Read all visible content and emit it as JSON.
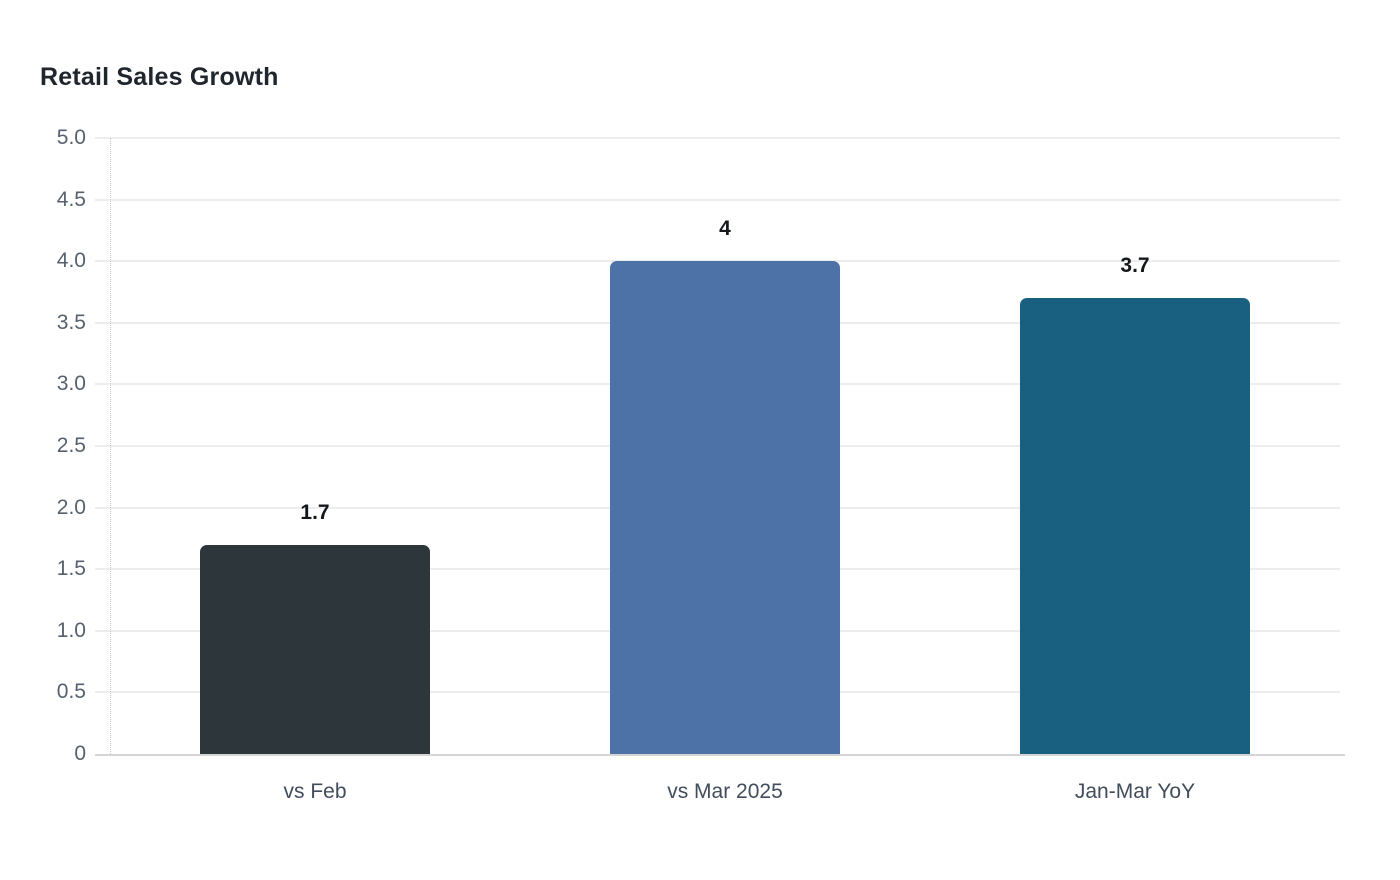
{
  "page": {
    "background": "#ffffff"
  },
  "chart_data": {
    "type": "bar",
    "title": "Retail Sales Growth",
    "categories": [
      "vs Feb",
      "vs Mar 2025",
      "Jan-Mar YoY"
    ],
    "values": [
      1.7,
      4,
      3.7
    ],
    "value_labels": [
      "1.7",
      "4",
      "3.7"
    ],
    "bar_colors": [
      "#2d363b",
      "#4c72a7",
      "#185f80"
    ],
    "xlabel": "",
    "ylabel": "",
    "ylim": [
      0,
      5
    ],
    "ytick_step": 0.5,
    "ytick_labels": [
      "0",
      "0.5",
      "1.0",
      "1.5",
      "2.0",
      "2.5",
      "3.0",
      "3.5",
      "4.0",
      "4.5",
      "5.0"
    ],
    "grid": true,
    "legend": false,
    "colors": {
      "title": "#20262e",
      "grid": "#ededed",
      "axis_line": "#d5d5d5",
      "dotted_axis": "#c9c9c9",
      "ytick_label": "#57616e",
      "category_label": "#424d5c",
      "value_label": "#14181d",
      "background": "#ffffff"
    }
  }
}
